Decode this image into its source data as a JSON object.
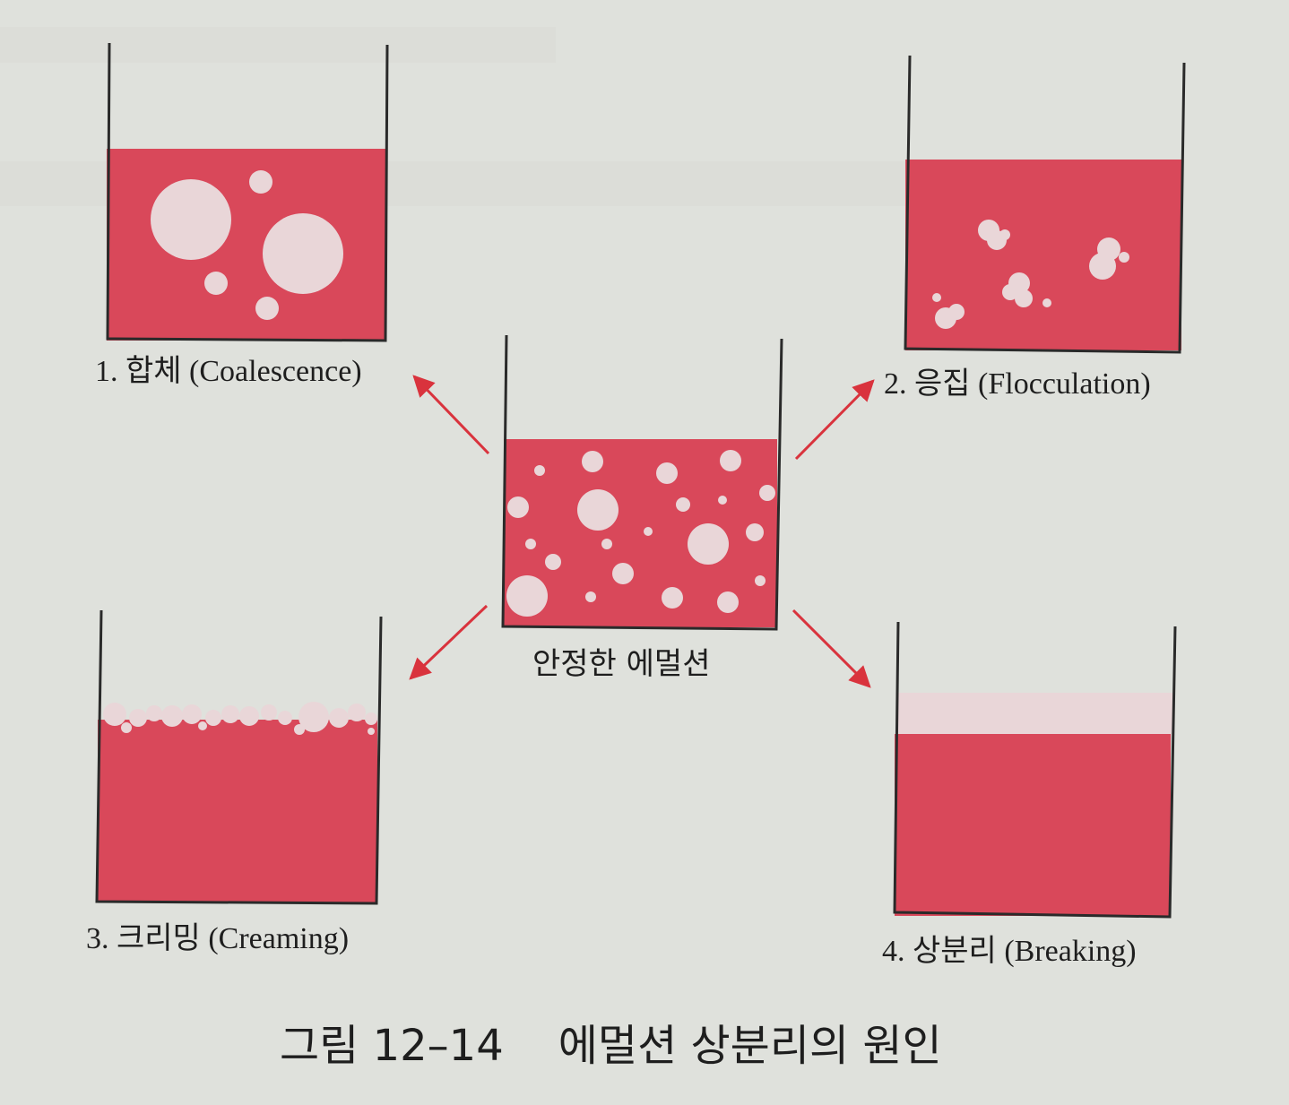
{
  "colors": {
    "background": "#dfe1dc",
    "liquid": "#d9485a",
    "droplet": "#e9d6d8",
    "arrow": "#d9333d",
    "line": "#2a2a2a"
  },
  "center": {
    "label": "안정한 에멀션"
  },
  "panels": [
    {
      "id": "coalescence",
      "label": "1.  합체 (Coalescence)"
    },
    {
      "id": "flocculation",
      "label": "2.  응집 (Flocculation)"
    },
    {
      "id": "creaming",
      "label": "3.  크리밍 (Creaming)"
    },
    {
      "id": "breaking",
      "label": "4.  상분리 (Breaking)"
    }
  ],
  "caption": "그림 12–14    에멀션 상분리의 원인"
}
